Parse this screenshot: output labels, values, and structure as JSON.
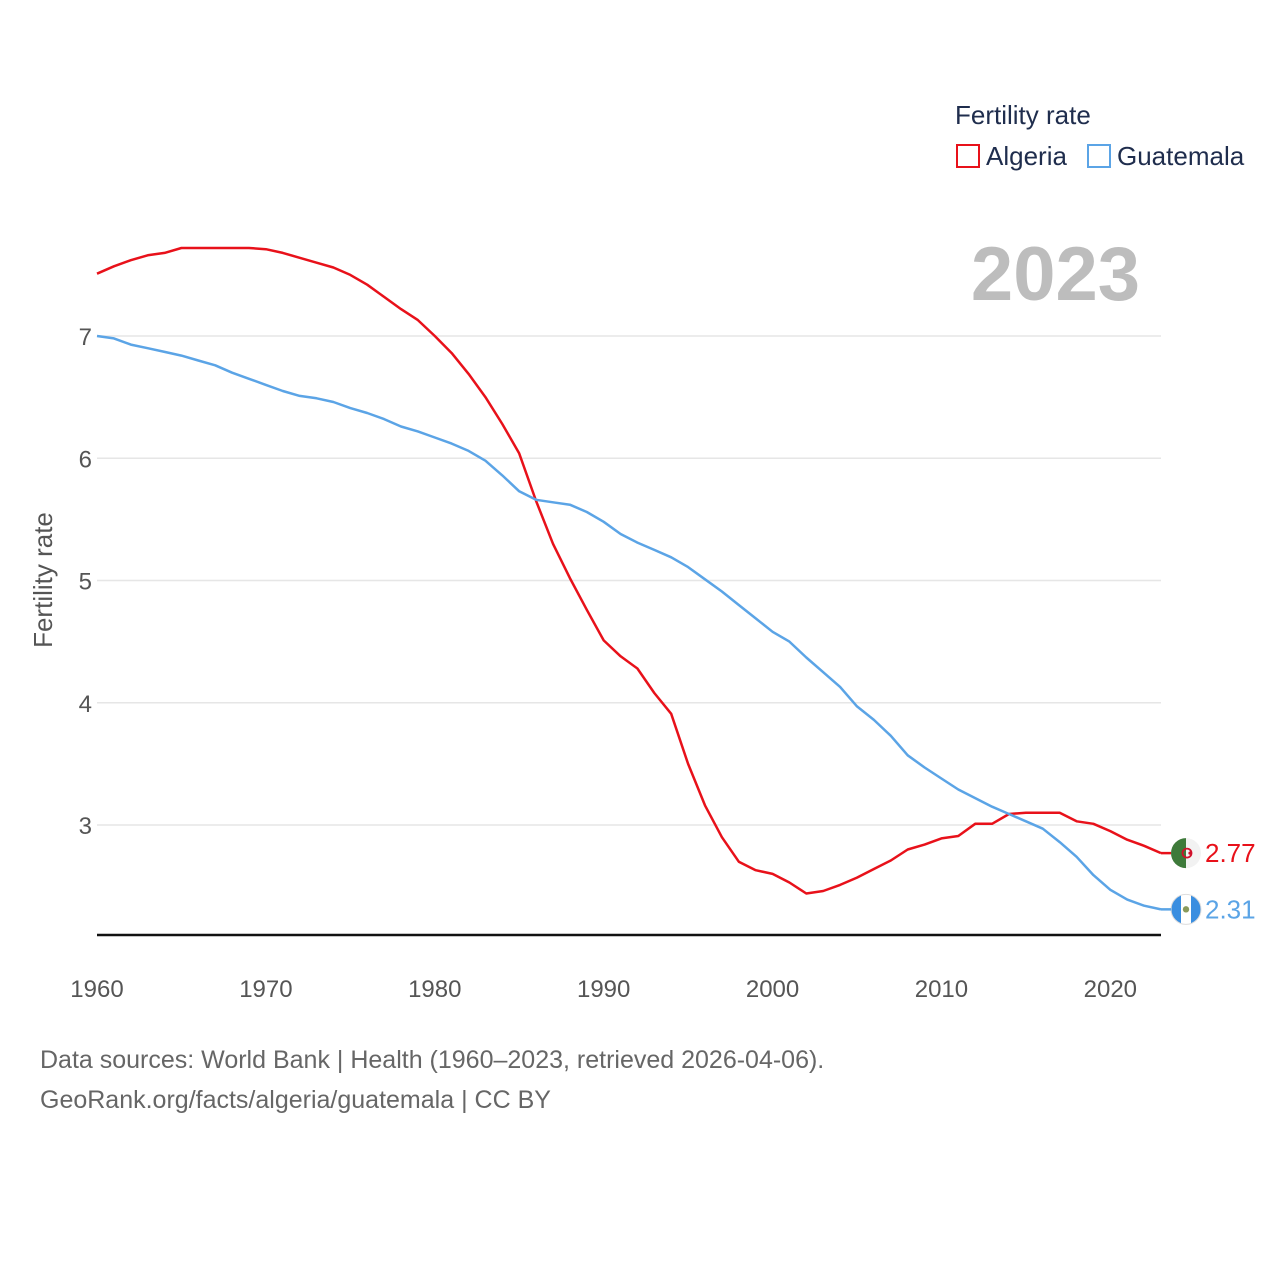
{
  "chart_data": {
    "type": "line",
    "title": "Fertility rate",
    "ylabel": "Fertility rate",
    "xlabel": "",
    "xlim": [
      1960,
      2023
    ],
    "ylim": [
      2.1,
      7.9
    ],
    "x_ticks": [
      1960,
      1970,
      1980,
      1990,
      2000,
      2010,
      2020
    ],
    "y_ticks": [
      3,
      4,
      5,
      6,
      7
    ],
    "grid": true,
    "legend_title": "Fertility rate",
    "legend_position": "top-right",
    "current_year": "2023",
    "series": [
      {
        "name": "Algeria",
        "color": "#e8111a",
        "end_label": "2.77",
        "flag": "algeria-flag",
        "x": [
          1960,
          1961,
          1962,
          1963,
          1964,
          1965,
          1966,
          1967,
          1968,
          1969,
          1970,
          1971,
          1972,
          1973,
          1974,
          1975,
          1976,
          1977,
          1978,
          1979,
          1980,
          1981,
          1982,
          1983,
          1984,
          1985,
          1986,
          1987,
          1988,
          1989,
          1990,
          1991,
          1992,
          1993,
          1994,
          1995,
          1996,
          1997,
          1998,
          1999,
          2000,
          2001,
          2002,
          2003,
          2004,
          2005,
          2006,
          2007,
          2008,
          2009,
          2010,
          2011,
          2012,
          2013,
          2014,
          2015,
          2016,
          2017,
          2018,
          2019,
          2020,
          2021,
          2022,
          2023
        ],
        "values": [
          7.51,
          7.57,
          7.62,
          7.66,
          7.68,
          7.72,
          7.72,
          7.72,
          7.72,
          7.72,
          7.71,
          7.68,
          7.64,
          7.6,
          7.56,
          7.5,
          7.42,
          7.32,
          7.22,
          7.13,
          7.0,
          6.86,
          6.69,
          6.5,
          6.28,
          6.04,
          5.65,
          5.3,
          5.02,
          4.76,
          4.51,
          4.38,
          4.28,
          4.08,
          3.91,
          3.5,
          3.16,
          2.9,
          2.7,
          2.63,
          2.6,
          2.53,
          2.44,
          2.46,
          2.51,
          2.57,
          2.64,
          2.71,
          2.8,
          2.84,
          2.89,
          2.91,
          3.01,
          3.01,
          3.09,
          3.1,
          3.1,
          3.1,
          3.03,
          3.01,
          2.95,
          2.88,
          2.83,
          2.77
        ]
      },
      {
        "name": "Guatemala",
        "color": "#5ba4e6",
        "end_label": "2.31",
        "flag": "guatemala-flag",
        "x": [
          1960,
          1961,
          1962,
          1963,
          1964,
          1965,
          1966,
          1967,
          1968,
          1969,
          1970,
          1971,
          1972,
          1973,
          1974,
          1975,
          1976,
          1977,
          1978,
          1979,
          1980,
          1981,
          1982,
          1983,
          1984,
          1985,
          1986,
          1987,
          1988,
          1989,
          1990,
          1991,
          1992,
          1993,
          1994,
          1995,
          1996,
          1997,
          1998,
          1999,
          2000,
          2001,
          2002,
          2003,
          2004,
          2005,
          2006,
          2007,
          2008,
          2009,
          2010,
          2011,
          2012,
          2013,
          2014,
          2015,
          2016,
          2017,
          2018,
          2019,
          2020,
          2021,
          2022,
          2023
        ],
        "values": [
          7.0,
          6.98,
          6.93,
          6.9,
          6.87,
          6.84,
          6.8,
          6.76,
          6.7,
          6.65,
          6.6,
          6.55,
          6.51,
          6.49,
          6.46,
          6.41,
          6.37,
          6.32,
          6.26,
          6.22,
          6.17,
          6.12,
          6.06,
          5.98,
          5.86,
          5.73,
          5.66,
          5.64,
          5.62,
          5.56,
          5.48,
          5.38,
          5.31,
          5.25,
          5.19,
          5.11,
          5.01,
          4.91,
          4.8,
          4.69,
          4.58,
          4.5,
          4.37,
          4.25,
          4.13,
          3.97,
          3.86,
          3.73,
          3.57,
          3.47,
          3.38,
          3.29,
          3.22,
          3.15,
          3.09,
          3.03,
          2.97,
          2.86,
          2.74,
          2.59,
          2.47,
          2.39,
          2.34,
          2.31
        ]
      }
    ]
  },
  "source": {
    "line1": "Data sources: World Bank | Health (1960–2023, retrieved 2026-04-06).",
    "line2": "GeoRank.org/facts/algeria/guatemala | CC BY"
  }
}
